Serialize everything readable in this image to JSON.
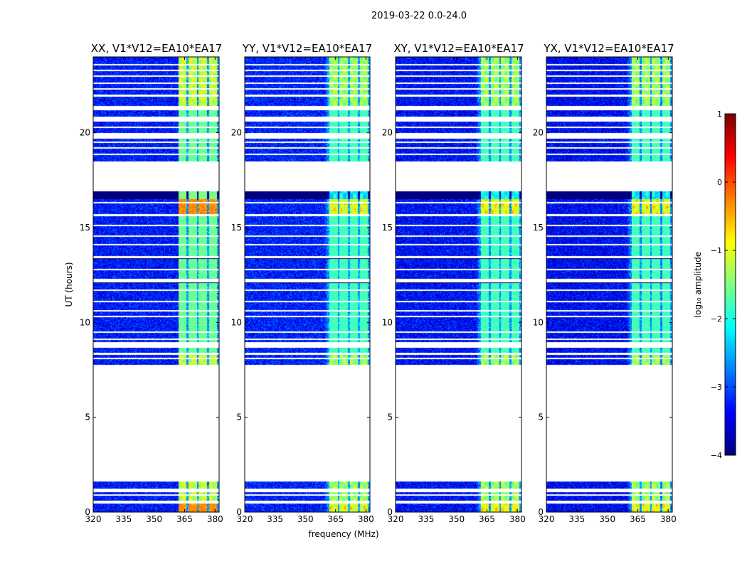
{
  "chart_data": {
    "type": "heatmap",
    "suptitle": "2019-03-22 0.0-24.0",
    "xlabel": "frequency (MHz)",
    "ylabel": "UT (hours)",
    "xlim": [
      320,
      382
    ],
    "ylim": [
      0,
      24
    ],
    "xticks": [
      320,
      335,
      350,
      365,
      380
    ],
    "yticks": [
      0,
      5,
      10,
      15,
      20
    ],
    "colormap": "jet",
    "colorbar": {
      "label": "log₁₀ amplitude",
      "range": [
        -4,
        1
      ],
      "ticks": [
        -4,
        -3,
        -2,
        -1,
        0,
        1
      ],
      "tick_labels": [
        "−4",
        "−3",
        "−2",
        "−1",
        "0",
        "1"
      ]
    },
    "panels": [
      {
        "title": "XX, V1*V12=EA10*EA17",
        "hot_start": 362.0,
        "background": -3.3,
        "band_peak": -1.6,
        "rfi_peak": 0.3
      },
      {
        "title": "YY, V1*V12=EA10*EA17",
        "hot_start": 359.5,
        "background": -3.25,
        "band_peak": -1.8,
        "rfi_peak": -0.6
      },
      {
        "title": "XY, V1*V12=EA10*EA17",
        "hot_start": 359.5,
        "background": -3.35,
        "band_peak": -1.8,
        "rfi_peak": -0.4
      },
      {
        "title": "YX, V1*V12=EA10*EA17",
        "hot_start": 359.5,
        "background": -3.4,
        "band_peak": -1.8,
        "rfi_peak": -0.5
      }
    ],
    "rfi_channels": [
      {
        "start": 362.0,
        "end": 366.0
      },
      {
        "start": 367.0,
        "end": 371.0
      },
      {
        "start": 372.0,
        "end": 376.0
      },
      {
        "start": 377.0,
        "end": 381.0
      }
    ],
    "data_segments_ut": [
      {
        "start": 0.0,
        "end": 0.45,
        "level": "high"
      },
      {
        "start": 0.6,
        "end": 0.85,
        "level": "mid"
      },
      {
        "start": 0.95,
        "end": 1.05,
        "level": "mid"
      },
      {
        "start": 1.15,
        "end": 1.6,
        "level": "mid"
      },
      {
        "start": 7.75,
        "end": 8.3,
        "level": "mid"
      },
      {
        "start": 8.4,
        "end": 8.65,
        "level": "low"
      },
      {
        "start": 8.95,
        "end": 12.1,
        "level": "low"
      },
      {
        "start": 12.3,
        "end": 13.4,
        "level": "low"
      },
      {
        "start": 13.5,
        "end": 15.6,
        "level": "low"
      },
      {
        "start": 15.7,
        "end": 16.9,
        "level": "high"
      },
      {
        "start": 18.5,
        "end": 19.7,
        "level": "low"
      },
      {
        "start": 20.0,
        "end": 20.6,
        "level": "low"
      },
      {
        "start": 20.85,
        "end": 21.2,
        "level": "low"
      },
      {
        "start": 21.4,
        "end": 21.9,
        "level": "mid"
      },
      {
        "start": 22.0,
        "end": 24.0,
        "level": "mid"
      }
    ],
    "gap_lines_ut": [
      0.52,
      1.2,
      8.1,
      9.1,
      9.5,
      10.3,
      10.6,
      11.1,
      11.7,
      12.8,
      13.45,
      14.1,
      14.55,
      15.1,
      16.3,
      18.85,
      19.2,
      19.5,
      20.3,
      22.3,
      22.6,
      23.0,
      23.3,
      23.6
    ]
  }
}
